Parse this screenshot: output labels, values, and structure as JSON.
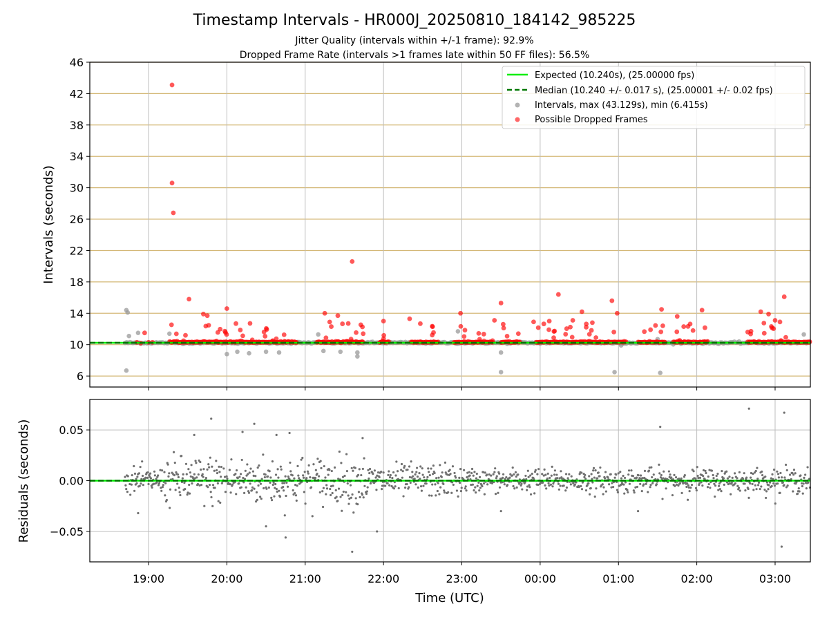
{
  "chart_data": {
    "type": "scatter",
    "title": "Timestamp Intervals - HR000J_20250810_184142_985225",
    "subtitle_1": "Jitter Quality (intervals within +/-1 frame): 92.9%",
    "subtitle_2": "Dropped Frame Rate (intervals >1 frames late within 50 FF files): 56.5%",
    "xlabel": "Time (UTC)",
    "x_ticks": [
      "19:00",
      "20:00",
      "21:00",
      "22:00",
      "23:00",
      "00:00",
      "01:00",
      "02:00",
      "03:00"
    ],
    "x_range_hours": [
      "18:15",
      "03:27"
    ],
    "top_panel": {
      "ylabel": "Intervals (seconds)",
      "ylim": [
        4.6,
        46
      ],
      "y_ticks": [
        6,
        10,
        14,
        18,
        22,
        26,
        30,
        34,
        38,
        42,
        46
      ],
      "grid": "horizontal lines tan, vertical lines gray",
      "legend_position": "top-right",
      "legend": [
        "Expected (10.240s), (25.00000 fps)",
        "Median (10.240 +/- 0.017 s), (25.00001 +/- 0.02 fps)",
        "Intervals, max (43.129s), min (6.415s)",
        "Possible Dropped Frames"
      ],
      "expected_value": 10.24,
      "median_value": 10.24,
      "time_start": "18:42",
      "time_end": "03:27",
      "dropped_outliers": [
        {
          "t": "19:18",
          "v": 43.1
        },
        {
          "t": "19:18",
          "v": 30.6
        },
        {
          "t": "19:19",
          "v": 26.8
        },
        {
          "t": "21:36",
          "v": 20.6
        },
        {
          "t": "19:31",
          "v": 15.8
        },
        {
          "t": "20:00",
          "v": 14.6
        },
        {
          "t": "21:15",
          "v": 14.0
        },
        {
          "t": "21:20",
          "v": 12.3
        },
        {
          "t": "21:25",
          "v": 13.7
        },
        {
          "t": "21:33",
          "v": 12.7
        },
        {
          "t": "23:30",
          "v": 15.3
        },
        {
          "t": "00:14",
          "v": 16.4
        },
        {
          "t": "00:55",
          "v": 15.6
        },
        {
          "t": "00:59",
          "v": 14.0
        },
        {
          "t": "01:33",
          "v": 14.5
        },
        {
          "t": "02:04",
          "v": 14.4
        },
        {
          "t": "03:07",
          "v": 16.1
        },
        {
          "t": "02:49",
          "v": 14.2
        },
        {
          "t": "02:55",
          "v": 13.9
        },
        {
          "t": "03:00",
          "v": 13.1
        },
        {
          "t": "01:45",
          "v": 13.6
        },
        {
          "t": "00:32",
          "v": 14.2
        },
        {
          "t": "00:25",
          "v": 13.1
        },
        {
          "t": "19:45",
          "v": 13.7
        },
        {
          "t": "19:42",
          "v": 13.9
        },
        {
          "t": "22:00",
          "v": 13.0
        },
        {
          "t": "22:20",
          "v": 13.3
        },
        {
          "t": "22:59",
          "v": 14.0
        },
        {
          "t": "23:25",
          "v": 13.1
        },
        {
          "t": "23:55",
          "v": 12.9
        },
        {
          "t": "00:07",
          "v": 13.0
        },
        {
          "t": "00:40",
          "v": 12.8
        },
        {
          "t": "01:50",
          "v": 12.3
        }
      ],
      "interval_outliers": [
        {
          "t": "18:43",
          "v": 14.4
        },
        {
          "t": "18:44",
          "v": 14.1
        },
        {
          "t": "18:43",
          "v": 6.7
        },
        {
          "t": "23:30",
          "v": 6.5
        },
        {
          "t": "00:57",
          "v": 6.5
        },
        {
          "t": "01:32",
          "v": 6.4
        },
        {
          "t": "21:40",
          "v": 8.5
        },
        {
          "t": "21:40",
          "v": 9.0
        },
        {
          "t": "21:27",
          "v": 9.1
        },
        {
          "t": "20:00",
          "v": 8.8
        },
        {
          "t": "20:08",
          "v": 9.1
        },
        {
          "t": "20:17",
          "v": 8.9
        },
        {
          "t": "20:30",
          "v": 9.1
        },
        {
          "t": "20:40",
          "v": 9.0
        },
        {
          "t": "21:14",
          "v": 9.2
        },
        {
          "t": "23:30",
          "v": 9.0
        },
        {
          "t": "18:45",
          "v": 11.1
        },
        {
          "t": "18:52",
          "v": 11.5
        },
        {
          "t": "19:16",
          "v": 11.4
        },
        {
          "t": "21:10",
          "v": 11.3
        },
        {
          "t": "22:57",
          "v": 11.7
        },
        {
          "t": "01:30",
          "v": 10.7
        },
        {
          "t": "03:22",
          "v": 11.3
        },
        {
          "t": "01:02",
          "v": 9.9
        }
      ]
    },
    "bottom_panel": {
      "ylabel": "Residuals (seconds)",
      "ylim": [
        -0.08,
        0.08
      ],
      "y_ticks": [
        0.05,
        0.0,
        -0.05
      ],
      "y_tick_labels": [
        "0.05",
        "0.00",
        "−0.05"
      ],
      "grid": "both axes gray",
      "zero_line": 0.0,
      "point_color": "#707070",
      "residual_outliers": [
        {
          "t": "19:35",
          "v": 0.045
        },
        {
          "t": "19:48",
          "v": 0.061
        },
        {
          "t": "20:12",
          "v": 0.048
        },
        {
          "t": "20:21",
          "v": 0.056
        },
        {
          "t": "20:38",
          "v": 0.045
        },
        {
          "t": "20:48",
          "v": 0.047
        },
        {
          "t": "21:44",
          "v": 0.042
        },
        {
          "t": "01:32",
          "v": 0.053
        },
        {
          "t": "02:40",
          "v": 0.071
        },
        {
          "t": "03:07",
          "v": 0.067
        },
        {
          "t": "20:30",
          "v": -0.045
        },
        {
          "t": "20:45",
          "v": -0.056
        },
        {
          "t": "21:36",
          "v": -0.07
        },
        {
          "t": "21:55",
          "v": -0.05
        },
        {
          "t": "03:05",
          "v": -0.065
        },
        {
          "t": "18:52",
          "v": -0.032
        },
        {
          "t": "23:30",
          "v": -0.03
        },
        {
          "t": "01:15",
          "v": -0.03
        }
      ]
    },
    "colors": {
      "expected_line": "#00ee00",
      "median_line": "#007700",
      "interval_points": "#999999",
      "dropped_points": "#ff0000",
      "h_grid_top": "#d4b877",
      "grid": "#bdbdbd",
      "residual_points": "#707070"
    }
  }
}
